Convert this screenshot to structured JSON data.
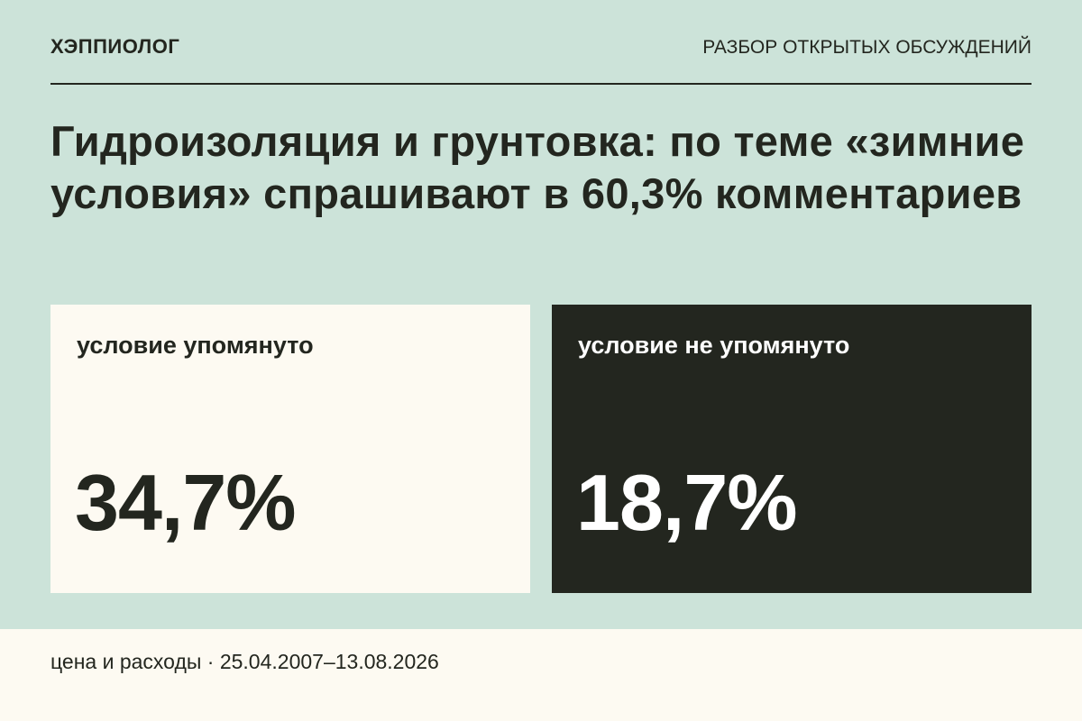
{
  "header": {
    "brand": "ХЭППИОЛОГ",
    "section": "РАЗБОР ОТКРЫТЫХ ОБСУЖДЕНИЙ"
  },
  "headline": "Гидроизоляция и грунтовка: по теме «зимние условия» спрашивают в 60,3% комментариев",
  "cards": [
    {
      "label": "условие упомянуто",
      "value": "34,7%",
      "background": "#fdfaf2",
      "text_color": "#23261f"
    },
    {
      "label": "условие не упомянуто",
      "value": "18,7%",
      "background": "#23261f",
      "text_color": "#ffffff"
    }
  ],
  "footer": {
    "text": "цена и расходы · 25.04.2007–13.08.2026"
  },
  "colors": {
    "page_background": "#cce3d9",
    "ink": "#23261f",
    "cream": "#fdfaf2"
  }
}
